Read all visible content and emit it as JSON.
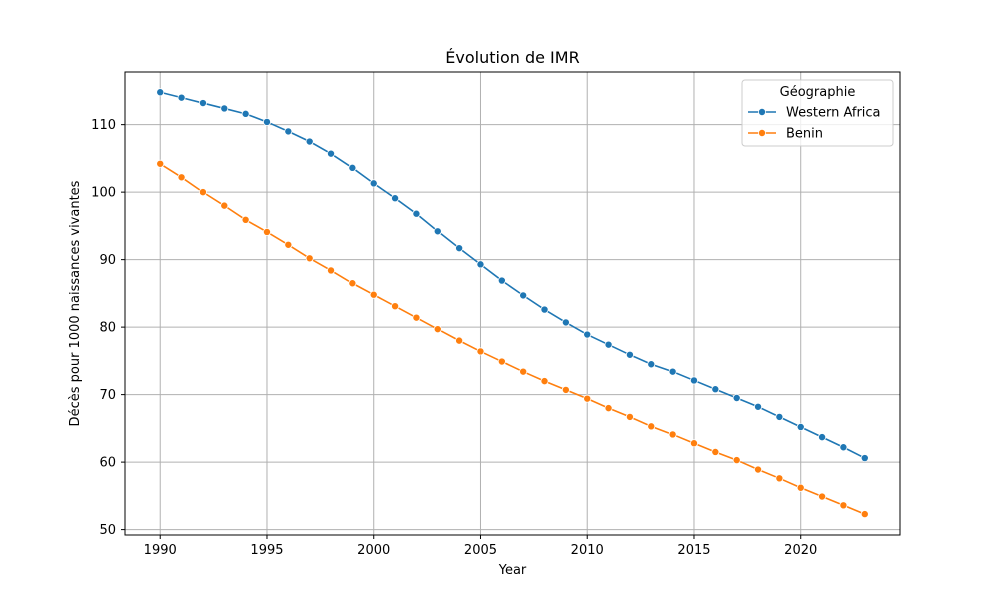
{
  "chart_data": {
    "type": "line",
    "title": "Évolution de IMR",
    "xlabel": "Year",
    "ylabel": "Décès pour 1000 naissances vivantes",
    "xlim": [
      1988.35,
      2024.65
    ],
    "ylim": [
      49.2,
      117.8
    ],
    "xticks": [
      1990,
      1995,
      2000,
      2005,
      2010,
      2015,
      2020
    ],
    "yticks": [
      50,
      60,
      70,
      80,
      90,
      100,
      110
    ],
    "grid": true,
    "legend": {
      "title": "Géographie",
      "position": "top-right"
    },
    "x": [
      1990,
      1991,
      1992,
      1993,
      1994,
      1995,
      1996,
      1997,
      1998,
      1999,
      2000,
      2001,
      2002,
      2003,
      2004,
      2005,
      2006,
      2007,
      2008,
      2009,
      2010,
      2011,
      2012,
      2013,
      2014,
      2015,
      2016,
      2017,
      2018,
      2019,
      2020,
      2021,
      2022,
      2023
    ],
    "series": [
      {
        "name": "Western Africa",
        "color": "#1f77b4",
        "values": [
          114.8,
          114.0,
          113.2,
          112.4,
          111.6,
          110.4,
          109.0,
          107.5,
          105.7,
          103.6,
          101.3,
          99.1,
          96.8,
          94.2,
          91.7,
          89.3,
          86.9,
          84.7,
          82.6,
          80.7,
          78.9,
          77.4,
          75.9,
          74.5,
          73.4,
          72.1,
          70.8,
          69.5,
          68.2,
          66.7,
          65.2,
          63.7,
          62.2,
          60.6
        ]
      },
      {
        "name": "Benin",
        "color": "#ff7f0e",
        "values": [
          104.2,
          102.2,
          100.0,
          98.0,
          95.9,
          94.1,
          92.2,
          90.2,
          88.4,
          86.5,
          84.8,
          83.1,
          81.4,
          79.7,
          78.0,
          76.4,
          74.9,
          73.4,
          72.0,
          70.7,
          69.4,
          68.0,
          66.7,
          65.3,
          64.1,
          62.8,
          61.5,
          60.3,
          58.9,
          57.6,
          56.2,
          54.9,
          53.6,
          52.3
        ]
      }
    ]
  }
}
